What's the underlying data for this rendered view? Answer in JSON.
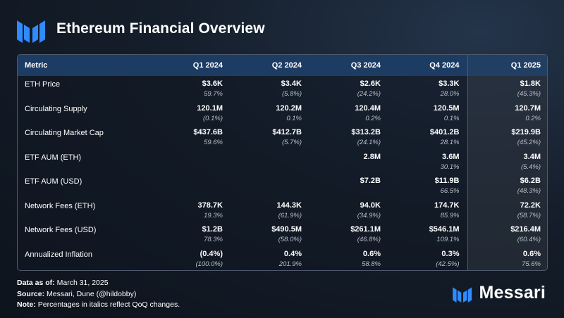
{
  "header": {
    "title": "Ethereum Financial Overview"
  },
  "colors": {
    "accent": "#2f8bff",
    "header_row": "#1d3c64"
  },
  "table": {
    "columns": [
      "Metric",
      "Q1 2024",
      "Q2 2024",
      "Q3 2024",
      "Q4 2024",
      "Q1 2025"
    ],
    "rows": [
      {
        "metric": "ETH Price",
        "cells": [
          {
            "v": "$3.6K",
            "c": "59.7%"
          },
          {
            "v": "$3.4K",
            "c": "(5.8%)"
          },
          {
            "v": "$2.6K",
            "c": "(24.2%)"
          },
          {
            "v": "$3.3K",
            "c": "28.0%"
          },
          {
            "v": "$1.8K",
            "c": "(45.3%)"
          }
        ]
      },
      {
        "metric": "Circulating Supply",
        "cells": [
          {
            "v": "120.1M",
            "c": "(0.1%)"
          },
          {
            "v": "120.2M",
            "c": "0.1%"
          },
          {
            "v": "120.4M",
            "c": "0.2%"
          },
          {
            "v": "120.5M",
            "c": "0.1%"
          },
          {
            "v": "120.7M",
            "c": "0.2%"
          }
        ]
      },
      {
        "metric": "Circulating Market Cap",
        "cells": [
          {
            "v": "$437.6B",
            "c": "59.6%"
          },
          {
            "v": "$412.7B",
            "c": "(5.7%)"
          },
          {
            "v": "$313.2B",
            "c": "(24.1%)"
          },
          {
            "v": "$401.2B",
            "c": "28.1%"
          },
          {
            "v": "$219.9B",
            "c": "(45.2%)"
          }
        ]
      },
      {
        "metric": "ETF AUM (ETH)",
        "cells": [
          {
            "v": "",
            "c": ""
          },
          {
            "v": "",
            "c": ""
          },
          {
            "v": "2.8M",
            "c": ""
          },
          {
            "v": "3.6M",
            "c": "30.1%"
          },
          {
            "v": "3.4M",
            "c": "(5.4%)"
          }
        ]
      },
      {
        "metric": "ETF AUM (USD)",
        "cells": [
          {
            "v": "",
            "c": ""
          },
          {
            "v": "",
            "c": ""
          },
          {
            "v": "$7.2B",
            "c": ""
          },
          {
            "v": "$11.9B",
            "c": "66.5%"
          },
          {
            "v": "$6.2B",
            "c": "(48.3%)"
          }
        ]
      },
      {
        "metric": "Network Fees (ETH)",
        "cells": [
          {
            "v": "378.7K",
            "c": "19.3%"
          },
          {
            "v": "144.3K",
            "c": "(61.9%)"
          },
          {
            "v": "94.0K",
            "c": "(34.9%)"
          },
          {
            "v": "174.7K",
            "c": "85.9%"
          },
          {
            "v": "72.2K",
            "c": "(58.7%)"
          }
        ]
      },
      {
        "metric": "Network Fees (USD)",
        "cells": [
          {
            "v": "$1.2B",
            "c": "78.3%"
          },
          {
            "v": "$490.5M",
            "c": "(58.0%)"
          },
          {
            "v": "$261.1M",
            "c": "(46.8%)"
          },
          {
            "v": "$546.1M",
            "c": "109.1%"
          },
          {
            "v": "$216.4M",
            "c": "(60.4%)"
          }
        ]
      },
      {
        "metric": "Annualized Inflation",
        "cells": [
          {
            "v": "(0.4%)",
            "c": "(100.0%)"
          },
          {
            "v": "0.4%",
            "c": "201.9%"
          },
          {
            "v": "0.6%",
            "c": "58.8%"
          },
          {
            "v": "0.3%",
            "c": "(42.5%)"
          },
          {
            "v": "0.6%",
            "c": "75.6%"
          }
        ]
      }
    ]
  },
  "footer": {
    "as_of_label": "Data as of:",
    "as_of_value": "March 31, 2025",
    "source_label": "Source:",
    "source_value": "Messari, Dune (@hildobby)",
    "note_label": "Note:",
    "note_value": "Percentages in italics reflect QoQ changes."
  },
  "brand": {
    "name": "Messari",
    "icon": "messari-logo-icon"
  }
}
